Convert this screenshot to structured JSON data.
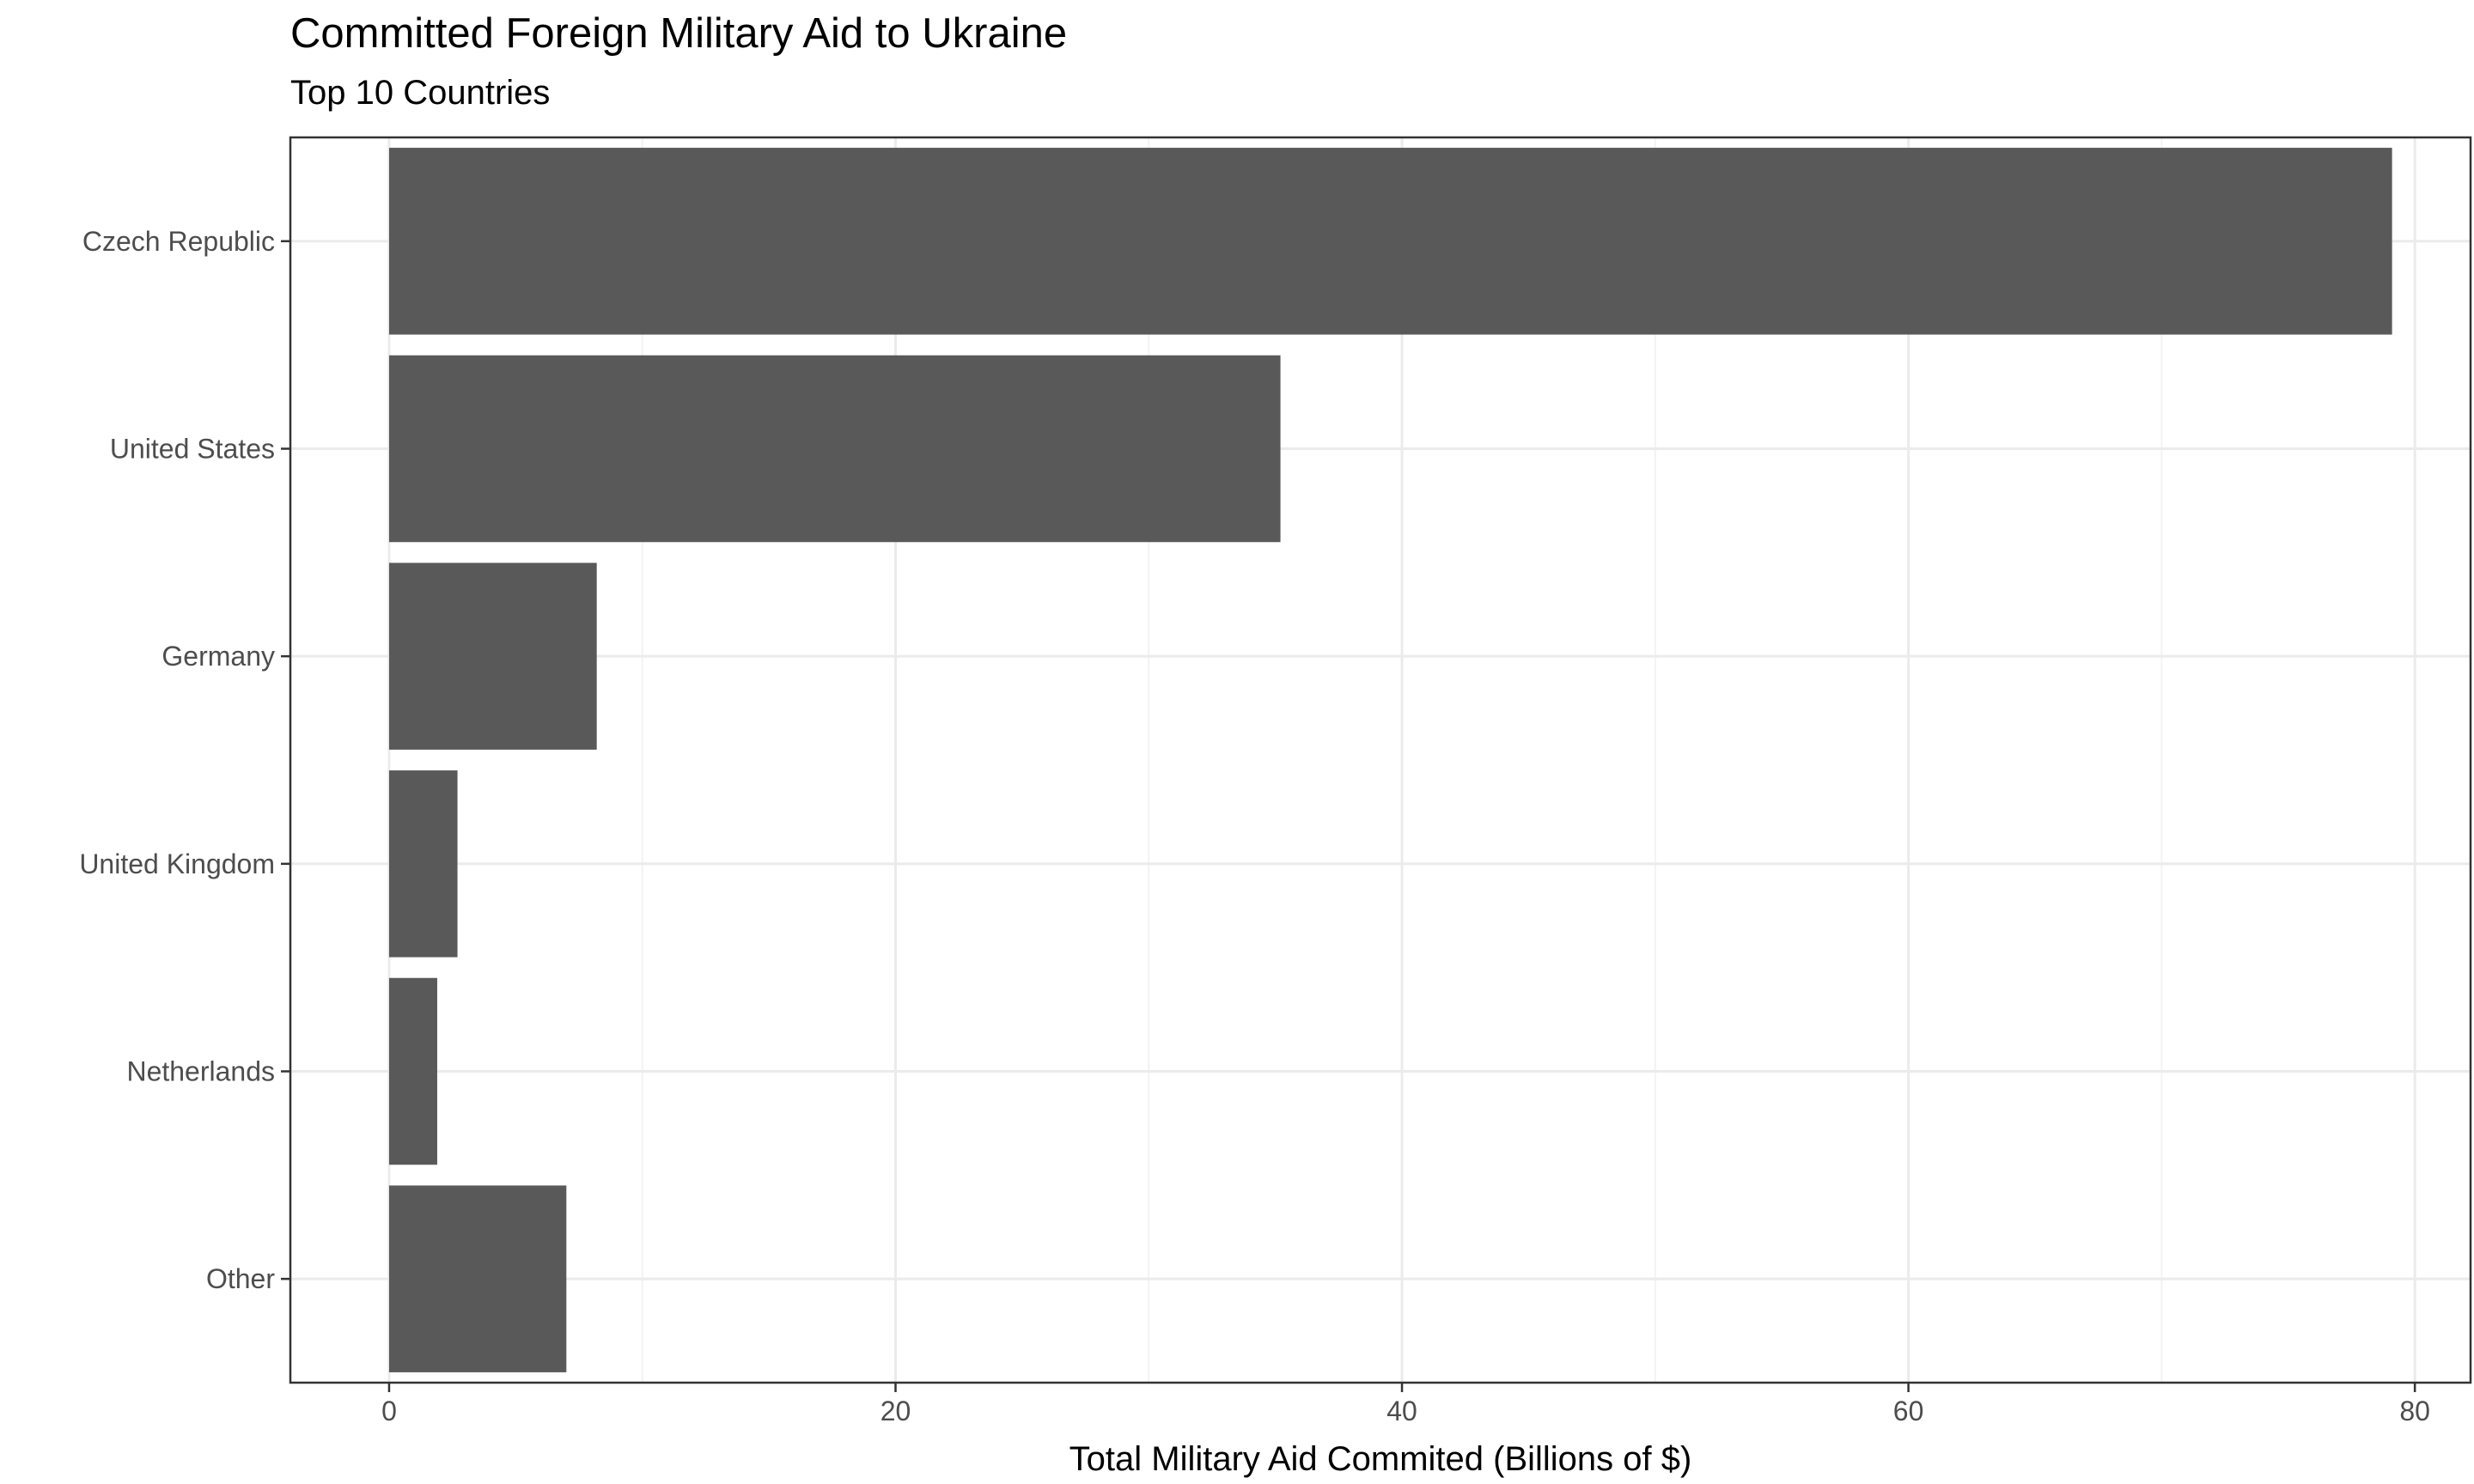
{
  "chart_data": {
    "type": "bar",
    "orientation": "horizontal",
    "title": "Committed Foreign Military Aid to Ukraine",
    "subtitle": "Top 10 Countries",
    "xlabel": "Total Military Aid Commited (Billions of $)",
    "ylabel": "",
    "categories": [
      "Czech Republic",
      "United States",
      "Germany",
      "United Kingdom",
      "Netherlands",
      "Other"
    ],
    "values": [
      79.1,
      35.2,
      8.2,
      2.7,
      1.9,
      7.0
    ],
    "xlim": [
      -3.9,
      82.2
    ],
    "xticks": [
      0,
      20,
      40,
      60,
      80
    ],
    "grid": true,
    "legend": "none",
    "colors": {
      "bar": "#595959",
      "grid_major": "#ebebeb",
      "grid_minor": "#f3f3f3",
      "panel_border": "#333333",
      "tick": "#333333"
    }
  }
}
